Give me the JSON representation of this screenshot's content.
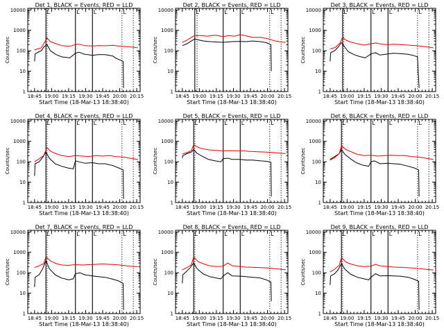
{
  "colors": {
    "events": "#000000",
    "lld": "#e00000",
    "axis": "#000000"
  },
  "shared": {
    "xlabel": "Start Time (18-Mar-13 18:38:40)",
    "ylabel": "Counts/sec",
    "x_tick_labels": [
      "18:45",
      "19:00",
      "19:15",
      "19:30",
      "19:45",
      "20:00",
      "20:15"
    ],
    "y_tick_labels": [
      "1",
      "10",
      "100",
      "1000",
      "10000"
    ],
    "marker_glyph": "L"
  },
  "chart_data": [
    {
      "type": "line",
      "title": "Det 1, BLACK = Events, RED = LLD",
      "xlim_min_after_start": [
        0,
        99
      ],
      "ylim": [
        1,
        12000
      ],
      "yscale": "log",
      "vlines_solid_min": [
        16,
        42,
        57
      ],
      "vlines_dotted_min": [
        17,
        83,
        93
      ],
      "series": [
        {
          "name": "Events",
          "color": "black",
          "x": [
            6,
            6.5,
            10,
            12,
            14,
            17,
            20,
            25,
            30,
            37,
            42,
            45,
            50,
            57,
            62,
            68,
            75,
            78,
            84,
            84.4
          ],
          "y": [
            30,
            70,
            90,
            100,
            150,
            200,
            100,
            65,
            50,
            45,
            75,
            85,
            68,
            60,
            65,
            65,
            55,
            42,
            30,
            1.5
          ]
        },
        {
          "name": "LLD",
          "color": "red",
          "x": [
            6,
            12,
            17,
            20,
            25,
            30,
            37,
            42,
            45,
            50,
            57,
            62,
            68,
            75,
            80,
            87,
            93,
            97
          ],
          "y": [
            110,
            140,
            420,
            280,
            220,
            180,
            165,
            200,
            210,
            180,
            170,
            180,
            175,
            185,
            170,
            160,
            150,
            140
          ]
        }
      ]
    },
    {
      "type": "line",
      "title": "Det 2, BLACK = Events, RED = LLD",
      "xlim_min_after_start": [
        0,
        99
      ],
      "ylim": [
        1,
        12000
      ],
      "yscale": "log",
      "vlines_solid_min": [
        17,
        42,
        57
      ],
      "vlines_dotted_min": [
        19,
        83,
        93
      ],
      "series": [
        {
          "name": "Events",
          "color": "black",
          "x": [
            6,
            10,
            14,
            17,
            20,
            25,
            30,
            35,
            42,
            50,
            57,
            62,
            68,
            75,
            80,
            84,
            84.4
          ],
          "y": [
            180,
            220,
            300,
            380,
            340,
            300,
            280,
            270,
            260,
            280,
            290,
            280,
            300,
            280,
            250,
            200,
            10
          ]
        },
        {
          "name": "LLD",
          "color": "red",
          "x": [
            6,
            10,
            14,
            17,
            22,
            28,
            35,
            42,
            47,
            52,
            57,
            62,
            68,
            75,
            82,
            87,
            93,
            97
          ],
          "y": [
            260,
            330,
            450,
            560,
            560,
            520,
            580,
            500,
            550,
            520,
            620,
            540,
            450,
            450,
            380,
            310,
            270,
            260
          ]
        }
      ]
    },
    {
      "type": "line",
      "title": "Det 3, BLACK = Events, RED = LLD",
      "xlim_min_after_start": [
        0,
        99
      ],
      "ylim": [
        1,
        12000
      ],
      "yscale": "log",
      "vlines_solid_min": [
        17,
        42,
        57
      ],
      "vlines_dotted_min": [
        18,
        83,
        93
      ],
      "series": [
        {
          "name": "Events",
          "color": "black",
          "x": [
            6,
            6.5,
            10,
            13,
            16,
            19,
            22,
            27,
            32,
            37,
            42,
            46,
            50,
            57,
            62,
            68,
            74,
            79,
            83,
            84.4
          ],
          "y": [
            30,
            80,
            100,
            150,
            250,
            150,
            90,
            65,
            52,
            45,
            70,
            80,
            62,
            70,
            75,
            72,
            68,
            60,
            50,
            1.5
          ]
        },
        {
          "name": "LLD",
          "color": "red",
          "x": [
            6,
            11,
            15,
            17,
            20,
            25,
            30,
            36,
            42,
            46,
            52,
            57,
            62,
            68,
            75,
            81,
            87,
            93,
            97
          ],
          "y": [
            120,
            150,
            250,
            450,
            330,
            260,
            220,
            190,
            220,
            240,
            210,
            200,
            210,
            200,
            190,
            180,
            165,
            150,
            140
          ]
        }
      ]
    },
    {
      "type": "line",
      "title": "Det 4, BLACK = Events, RED = LLD",
      "xlim_min_after_start": [
        0,
        99
      ],
      "ylim": [
        1,
        12000
      ],
      "yscale": "log",
      "vlines_solid_min": [
        16,
        42,
        57
      ],
      "vlines_dotted_min": [
        17,
        83,
        93
      ],
      "series": [
        {
          "name": "Events",
          "color": "black",
          "x": [
            6,
            6.5,
            10,
            13,
            16,
            19,
            24,
            30,
            35,
            40,
            42,
            45,
            50,
            57,
            62,
            68,
            75,
            80,
            84,
            84.4
          ],
          "y": [
            20,
            80,
            100,
            160,
            300,
            150,
            80,
            60,
            50,
            45,
            110,
            100,
            85,
            90,
            80,
            80,
            65,
            50,
            40,
            1.5
          ]
        },
        {
          "name": "LLD",
          "color": "red",
          "x": [
            6,
            10,
            14,
            17,
            20,
            25,
            30,
            36,
            42,
            48,
            54,
            60,
            66,
            72,
            78,
            84,
            90,
            97
          ],
          "y": [
            100,
            140,
            200,
            500,
            330,
            250,
            200,
            180,
            200,
            190,
            180,
            200,
            190,
            200,
            180,
            170,
            150,
            130
          ]
        }
      ]
    },
    {
      "type": "line",
      "title": "Det 5, BLACK = Events, RED = LLD",
      "xlim_min_after_start": [
        0,
        99
      ],
      "ylim": [
        1,
        12000
      ],
      "yscale": "log",
      "vlines_solid_min": [
        16,
        42,
        57
      ],
      "vlines_dotted_min": [
        17,
        83,
        93
      ],
      "series": [
        {
          "name": "Events",
          "color": "black",
          "x": [
            6,
            6.5,
            10,
            14,
            16,
            19,
            24,
            29,
            35,
            40,
            42,
            46,
            50,
            57,
            62,
            68,
            75,
            80,
            84,
            84.4
          ],
          "y": [
            150,
            200,
            250,
            300,
            400,
            260,
            180,
            130,
            110,
            100,
            140,
            150,
            130,
            130,
            120,
            120,
            110,
            105,
            95,
            2
          ]
        },
        {
          "name": "LLD",
          "color": "red",
          "x": [
            6,
            10,
            14,
            16,
            20,
            25,
            30,
            36,
            42,
            48,
            54,
            60,
            66,
            72,
            78,
            84,
            90,
            97
          ],
          "y": [
            240,
            280,
            350,
            700,
            500,
            420,
            380,
            360,
            340,
            350,
            340,
            340,
            320,
            310,
            300,
            290,
            270,
            250
          ]
        }
      ]
    },
    {
      "type": "line",
      "title": "Det 6, BLACK = Events, RED = LLD",
      "xlim_min_after_start": [
        0,
        99
      ],
      "ylim": [
        1,
        12000
      ],
      "yscale": "log",
      "vlines_solid_min": [
        16,
        42,
        57
      ],
      "vlines_dotted_min": [
        17,
        83,
        93
      ],
      "series": [
        {
          "name": "Events",
          "color": "black",
          "x": [
            6,
            10,
            14,
            16,
            19,
            24,
            29,
            34,
            40,
            42,
            45,
            50,
            57,
            62,
            68,
            75,
            80,
            84,
            84.4
          ],
          "y": [
            130,
            180,
            250,
            400,
            230,
            140,
            90,
            70,
            60,
            100,
            110,
            80,
            85,
            80,
            75,
            60,
            50,
            40,
            2
          ]
        },
        {
          "name": "LLD",
          "color": "red",
          "x": [
            6,
            10,
            14,
            16,
            20,
            25,
            30,
            36,
            42,
            48,
            54,
            60,
            66,
            72,
            78,
            84,
            90,
            97
          ],
          "y": [
            120,
            160,
            250,
            600,
            400,
            300,
            230,
            200,
            210,
            190,
            200,
            210,
            200,
            200,
            180,
            170,
            150,
            130
          ]
        }
      ]
    },
    {
      "type": "line",
      "title": "Det 7, BLACK = Events, RED = LLD",
      "xlim_min_after_start": [
        0,
        99
      ],
      "ylim": [
        1,
        12000
      ],
      "yscale": "log",
      "vlines_solid_min": [
        16,
        42,
        57
      ],
      "vlines_dotted_min": [
        17,
        83,
        93
      ],
      "series": [
        {
          "name": "Events",
          "color": "black",
          "x": [
            6,
            6.5,
            10,
            13,
            16,
            19,
            24,
            30,
            36,
            40,
            42,
            46,
            50,
            57,
            62,
            68,
            74,
            80,
            84,
            84.4
          ],
          "y": [
            20,
            60,
            80,
            150,
            400,
            160,
            80,
            55,
            45,
            50,
            90,
            100,
            80,
            70,
            65,
            60,
            50,
            40,
            30,
            1.5
          ]
        },
        {
          "name": "LLD",
          "color": "red",
          "x": [
            6,
            10,
            14,
            16,
            20,
            25,
            30,
            36,
            42,
            48,
            54,
            60,
            66,
            72,
            78,
            84,
            90,
            97
          ],
          "y": [
            180,
            220,
            280,
            600,
            380,
            280,
            240,
            230,
            250,
            240,
            250,
            260,
            270,
            260,
            250,
            230,
            210,
            200
          ]
        }
      ]
    },
    {
      "type": "line",
      "title": "Det 8, BLACK = Events, RED = LLD",
      "xlim_min_after_start": [
        0,
        99
      ],
      "ylim": [
        1,
        12000
      ],
      "yscale": "log",
      "vlines_solid_min": [
        16,
        42,
        57
      ],
      "vlines_dotted_min": [
        17,
        83,
        93
      ],
      "series": [
        {
          "name": "Events",
          "color": "black",
          "x": [
            6,
            6.5,
            10,
            13,
            16,
            19,
            24,
            30,
            36,
            40,
            42,
            46,
            50,
            57,
            62,
            68,
            75,
            80,
            84,
            84.4
          ],
          "y": [
            30,
            80,
            120,
            180,
            300,
            160,
            90,
            65,
            55,
            50,
            70,
            100,
            70,
            68,
            65,
            60,
            55,
            45,
            35,
            4
          ]
        },
        {
          "name": "LLD",
          "color": "red",
          "x": [
            6,
            10,
            14,
            16,
            20,
            25,
            30,
            36,
            42,
            46,
            50,
            57,
            62,
            68,
            75,
            82,
            90,
            97
          ],
          "y": [
            140,
            180,
            250,
            600,
            350,
            270,
            220,
            200,
            210,
            300,
            220,
            200,
            190,
            185,
            180,
            170,
            155,
            140
          ]
        }
      ]
    },
    {
      "type": "line",
      "title": "Det 9, BLACK = Events, RED = LLD",
      "xlim_min_after_start": [
        0,
        99
      ],
      "ylim": [
        1,
        12000
      ],
      "yscale": "log",
      "vlines_solid_min": [
        16,
        42,
        57
      ],
      "vlines_dotted_min": [
        17,
        83,
        93
      ],
      "series": [
        {
          "name": "Events",
          "color": "black",
          "x": [
            6,
            6.5,
            10,
            13,
            16,
            19,
            24,
            30,
            36,
            40,
            42,
            46,
            50,
            57,
            62,
            68,
            75,
            80,
            84,
            84.4
          ],
          "y": [
            25,
            70,
            90,
            140,
            280,
            150,
            85,
            60,
            50,
            45,
            60,
            90,
            70,
            72,
            70,
            68,
            60,
            48,
            38,
            1.5
          ]
        },
        {
          "name": "LLD",
          "color": "red",
          "x": [
            6,
            10,
            14,
            16,
            20,
            25,
            30,
            36,
            42,
            46,
            50,
            57,
            62,
            68,
            75,
            82,
            90,
            97
          ],
          "y": [
            110,
            150,
            230,
            550,
            330,
            260,
            220,
            200,
            210,
            260,
            220,
            200,
            190,
            185,
            175,
            165,
            150,
            135
          ]
        }
      ]
    }
  ]
}
